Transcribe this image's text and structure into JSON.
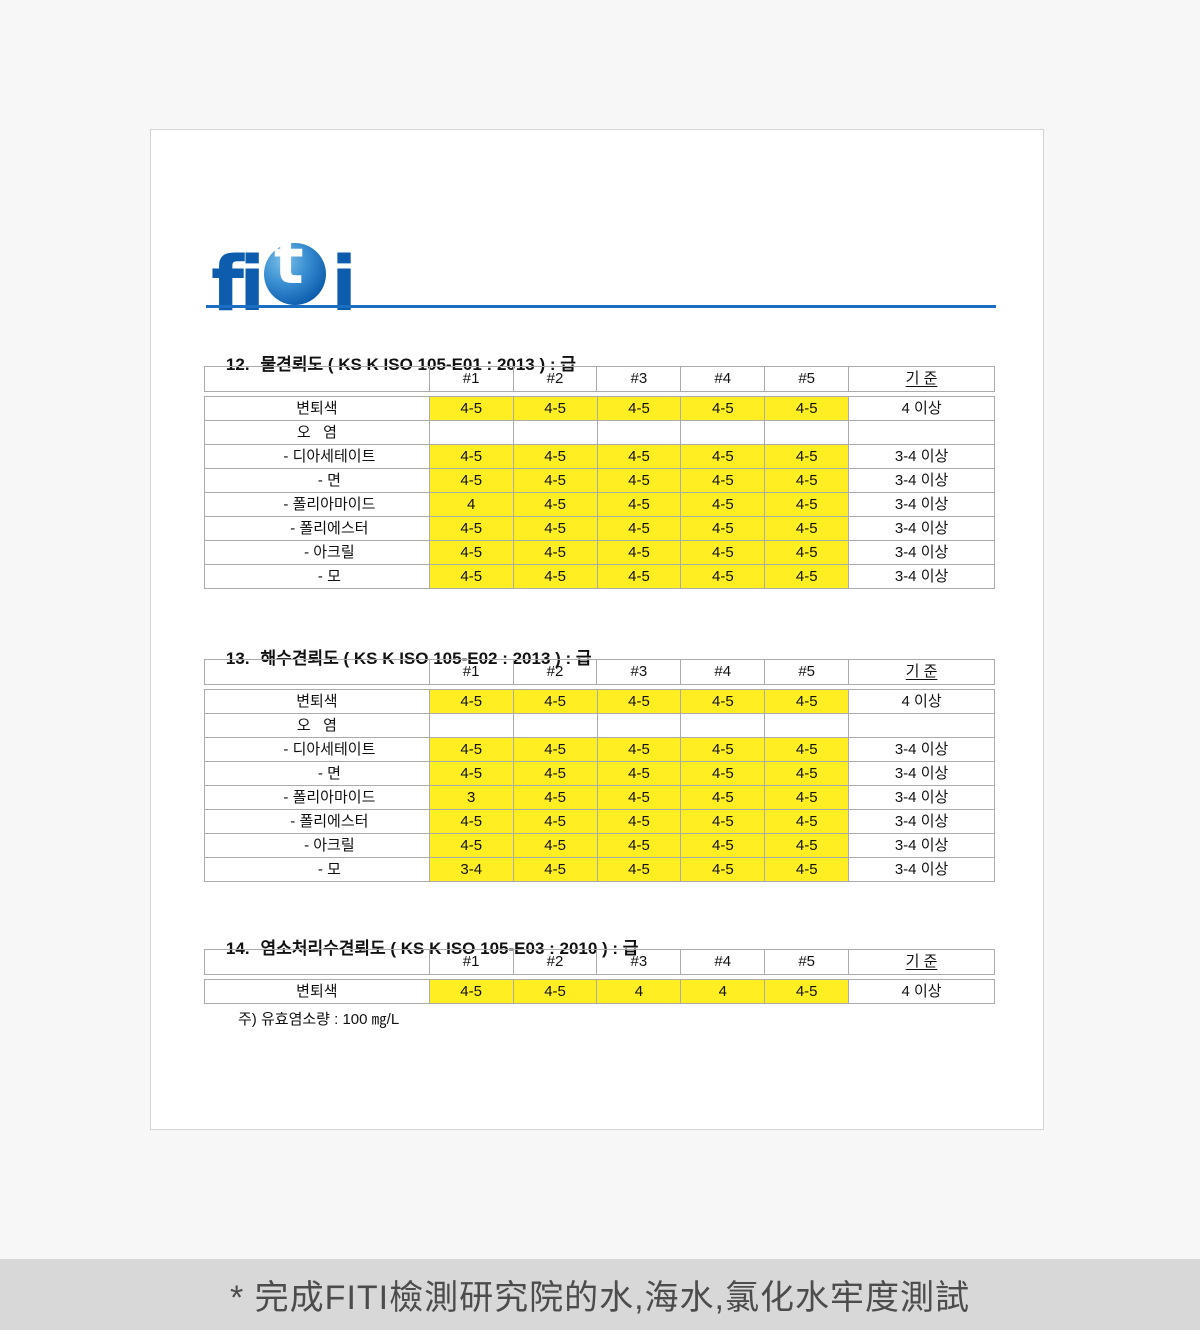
{
  "page": {
    "background": "#f7f7f7",
    "caption": "* 完成FITI檢測研究院的水,海水,氯化水牢度測試"
  },
  "colors": {
    "brand_blue": "#0d5cad",
    "rule_blue": "#1b6ec2",
    "highlight_yellow": "#ffee22",
    "caption_bg": "#d8d8d8",
    "table_border": "#ababab"
  },
  "document": {
    "logo": {
      "name": "FITI",
      "part_fi": "fi",
      "part_t": "t",
      "part_i": "i"
    },
    "tables": [
      {
        "number": "12.",
        "title": "물견뢰도 ( KS K ISO 105-E01 : 2013 ) : 급",
        "columns": [
          "#1",
          "#2",
          "#3",
          "#4",
          "#5",
          "기 준"
        ],
        "rows": [
          {
            "label": "변퇴색",
            "sub": false,
            "highlight": true,
            "values": [
              "4-5",
              "4-5",
              "4-5",
              "4-5",
              "4-5"
            ],
            "standard": "4 이상"
          },
          {
            "label": "오   염",
            "sub": false,
            "highlight": false,
            "values": [
              "",
              "",
              "",
              "",
              ""
            ],
            "standard": ""
          },
          {
            "label": "- 디아세테이트",
            "sub": true,
            "highlight": true,
            "values": [
              "4-5",
              "4-5",
              "4-5",
              "4-5",
              "4-5"
            ],
            "standard": "3-4 이상"
          },
          {
            "label": "- 면",
            "sub": true,
            "highlight": true,
            "values": [
              "4-5",
              "4-5",
              "4-5",
              "4-5",
              "4-5"
            ],
            "standard": "3-4 이상"
          },
          {
            "label": "- 폴리아마이드",
            "sub": true,
            "highlight": true,
            "values": [
              "4",
              "4-5",
              "4-5",
              "4-5",
              "4-5"
            ],
            "standard": "3-4 이상"
          },
          {
            "label": "- 폴리에스터",
            "sub": true,
            "highlight": true,
            "values": [
              "4-5",
              "4-5",
              "4-5",
              "4-5",
              "4-5"
            ],
            "standard": "3-4 이상"
          },
          {
            "label": "- 아크릴",
            "sub": true,
            "highlight": true,
            "values": [
              "4-5",
              "4-5",
              "4-5",
              "4-5",
              "4-5"
            ],
            "standard": "3-4 이상"
          },
          {
            "label": "- 모",
            "sub": true,
            "highlight": true,
            "values": [
              "4-5",
              "4-5",
              "4-5",
              "4-5",
              "4-5"
            ],
            "standard": "3-4 이상"
          }
        ]
      },
      {
        "number": "13.",
        "title": "해수견뢰도 ( KS K ISO 105-E02 : 2013 ) : 급",
        "columns": [
          "#1",
          "#2",
          "#3",
          "#4",
          "#5",
          "기 준"
        ],
        "rows": [
          {
            "label": "변퇴색",
            "sub": false,
            "highlight": true,
            "values": [
              "4-5",
              "4-5",
              "4-5",
              "4-5",
              "4-5"
            ],
            "standard": "4 이상"
          },
          {
            "label": "오   염",
            "sub": false,
            "highlight": false,
            "values": [
              "",
              "",
              "",
              "",
              ""
            ],
            "standard": ""
          },
          {
            "label": "- 디아세테이트",
            "sub": true,
            "highlight": true,
            "values": [
              "4-5",
              "4-5",
              "4-5",
              "4-5",
              "4-5"
            ],
            "standard": "3-4 이상"
          },
          {
            "label": "- 면",
            "sub": true,
            "highlight": true,
            "values": [
              "4-5",
              "4-5",
              "4-5",
              "4-5",
              "4-5"
            ],
            "standard": "3-4 이상"
          },
          {
            "label": "- 폴리아마이드",
            "sub": true,
            "highlight": true,
            "values": [
              "3",
              "4-5",
              "4-5",
              "4-5",
              "4-5"
            ],
            "standard": "3-4 이상"
          },
          {
            "label": "- 폴리에스터",
            "sub": true,
            "highlight": true,
            "values": [
              "4-5",
              "4-5",
              "4-5",
              "4-5",
              "4-5"
            ],
            "standard": "3-4 이상"
          },
          {
            "label": "- 아크릴",
            "sub": true,
            "highlight": true,
            "values": [
              "4-5",
              "4-5",
              "4-5",
              "4-5",
              "4-5"
            ],
            "standard": "3-4 이상"
          },
          {
            "label": "- 모",
            "sub": true,
            "highlight": true,
            "values": [
              "3-4",
              "4-5",
              "4-5",
              "4-5",
              "4-5"
            ],
            "standard": "3-4 이상"
          }
        ]
      },
      {
        "number": "14.",
        "title": "염소처리수견뢰도 ( KS K ISO 105-E03 : 2010 ) : 급",
        "columns": [
          "#1",
          "#2",
          "#3",
          "#4",
          "#5",
          "기 준"
        ],
        "rows": [
          {
            "label": "변퇴색",
            "sub": false,
            "highlight": true,
            "values": [
              "4-5",
              "4-5",
              "4",
              "4",
              "4-5"
            ],
            "standard": "4 이상"
          }
        ]
      }
    ],
    "note": "주) 유효염소량 : 100 ㎎/L"
  }
}
